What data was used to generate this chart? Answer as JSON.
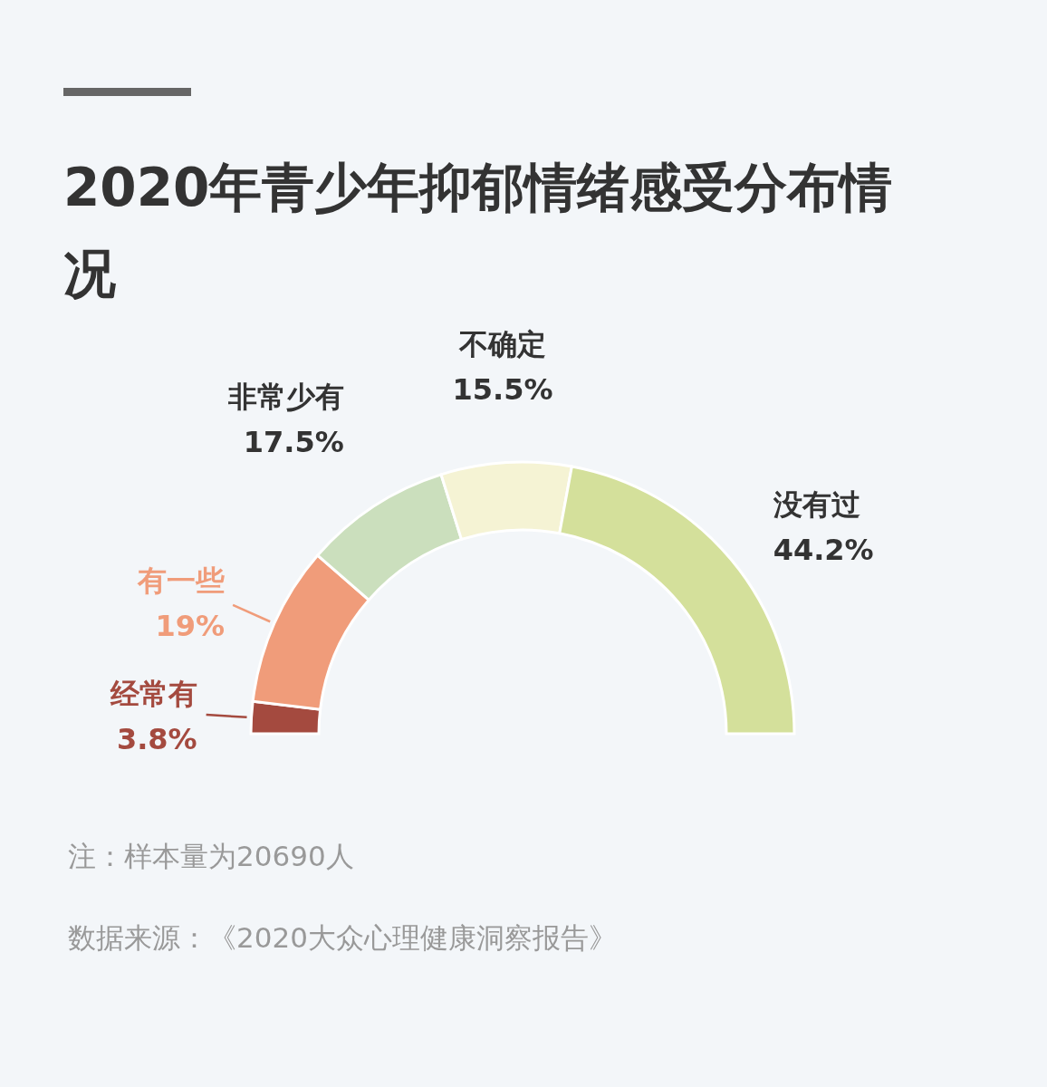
{
  "chart_data": {
    "type": "donut",
    "title": "2020年青少年抑郁情绪感受分布情况",
    "categories": [
      "经常有",
      "有一些",
      "非常少有",
      "不确定",
      "没有过"
    ],
    "values": [
      3.8,
      19,
      17.5,
      15.5,
      44.2
    ],
    "colors": [
      "#a44a3f",
      "#f09c7a",
      "#cbdfbd",
      "#f5f3d4",
      "#d4e09b"
    ],
    "value_labels": [
      "3.8%",
      "19%",
      "17.5%",
      "15.5%",
      "44.2%"
    ],
    "annotations": [
      "注：样本量为20690人",
      "数据来源：《2020大众心理健康洞察报告》"
    ]
  }
}
